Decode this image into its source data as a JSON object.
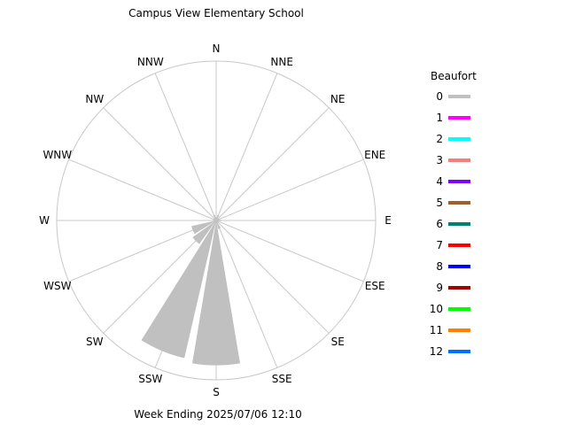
{
  "chart_data": {
    "type": "wind-rose",
    "title": "Campus View Elementary School",
    "footer": "Week Ending 2025/07/06 12:10",
    "directions": [
      "N",
      "NNE",
      "NE",
      "ENE",
      "E",
      "ESE",
      "SE",
      "SSE",
      "S",
      "SSW",
      "SW",
      "WSW",
      "W",
      "WNW",
      "NW",
      "NNW"
    ],
    "legend": {
      "title": "Beaufort",
      "entries": [
        {
          "label": "0",
          "color": "#c0c0c0"
        },
        {
          "label": "1",
          "color": "#ff00ff"
        },
        {
          "label": "2",
          "color": "#00ffff"
        },
        {
          "label": "3",
          "color": "#f08080"
        },
        {
          "label": "4",
          "color": "#8000ff"
        },
        {
          "label": "5",
          "color": "#a0602c"
        },
        {
          "label": "6",
          "color": "#008070"
        },
        {
          "label": "7",
          "color": "#ff0000"
        },
        {
          "label": "8",
          "color": "#0000ff"
        },
        {
          "label": "9",
          "color": "#a00000"
        },
        {
          "label": "10",
          "color": "#00ff00"
        },
        {
          "label": "11",
          "color": "#ff8000"
        },
        {
          "label": "12",
          "color": "#0070ff"
        }
      ]
    },
    "series": [
      {
        "beaufort": "0",
        "values": [
          0.5,
          0.8,
          0.2,
          0.5,
          0.7,
          0.4,
          0.3,
          1.2,
          20,
          19.5,
          4,
          3.5,
          0.2,
          0.4,
          0.3,
          0.8
        ]
      }
    ],
    "rmax": 22
  }
}
